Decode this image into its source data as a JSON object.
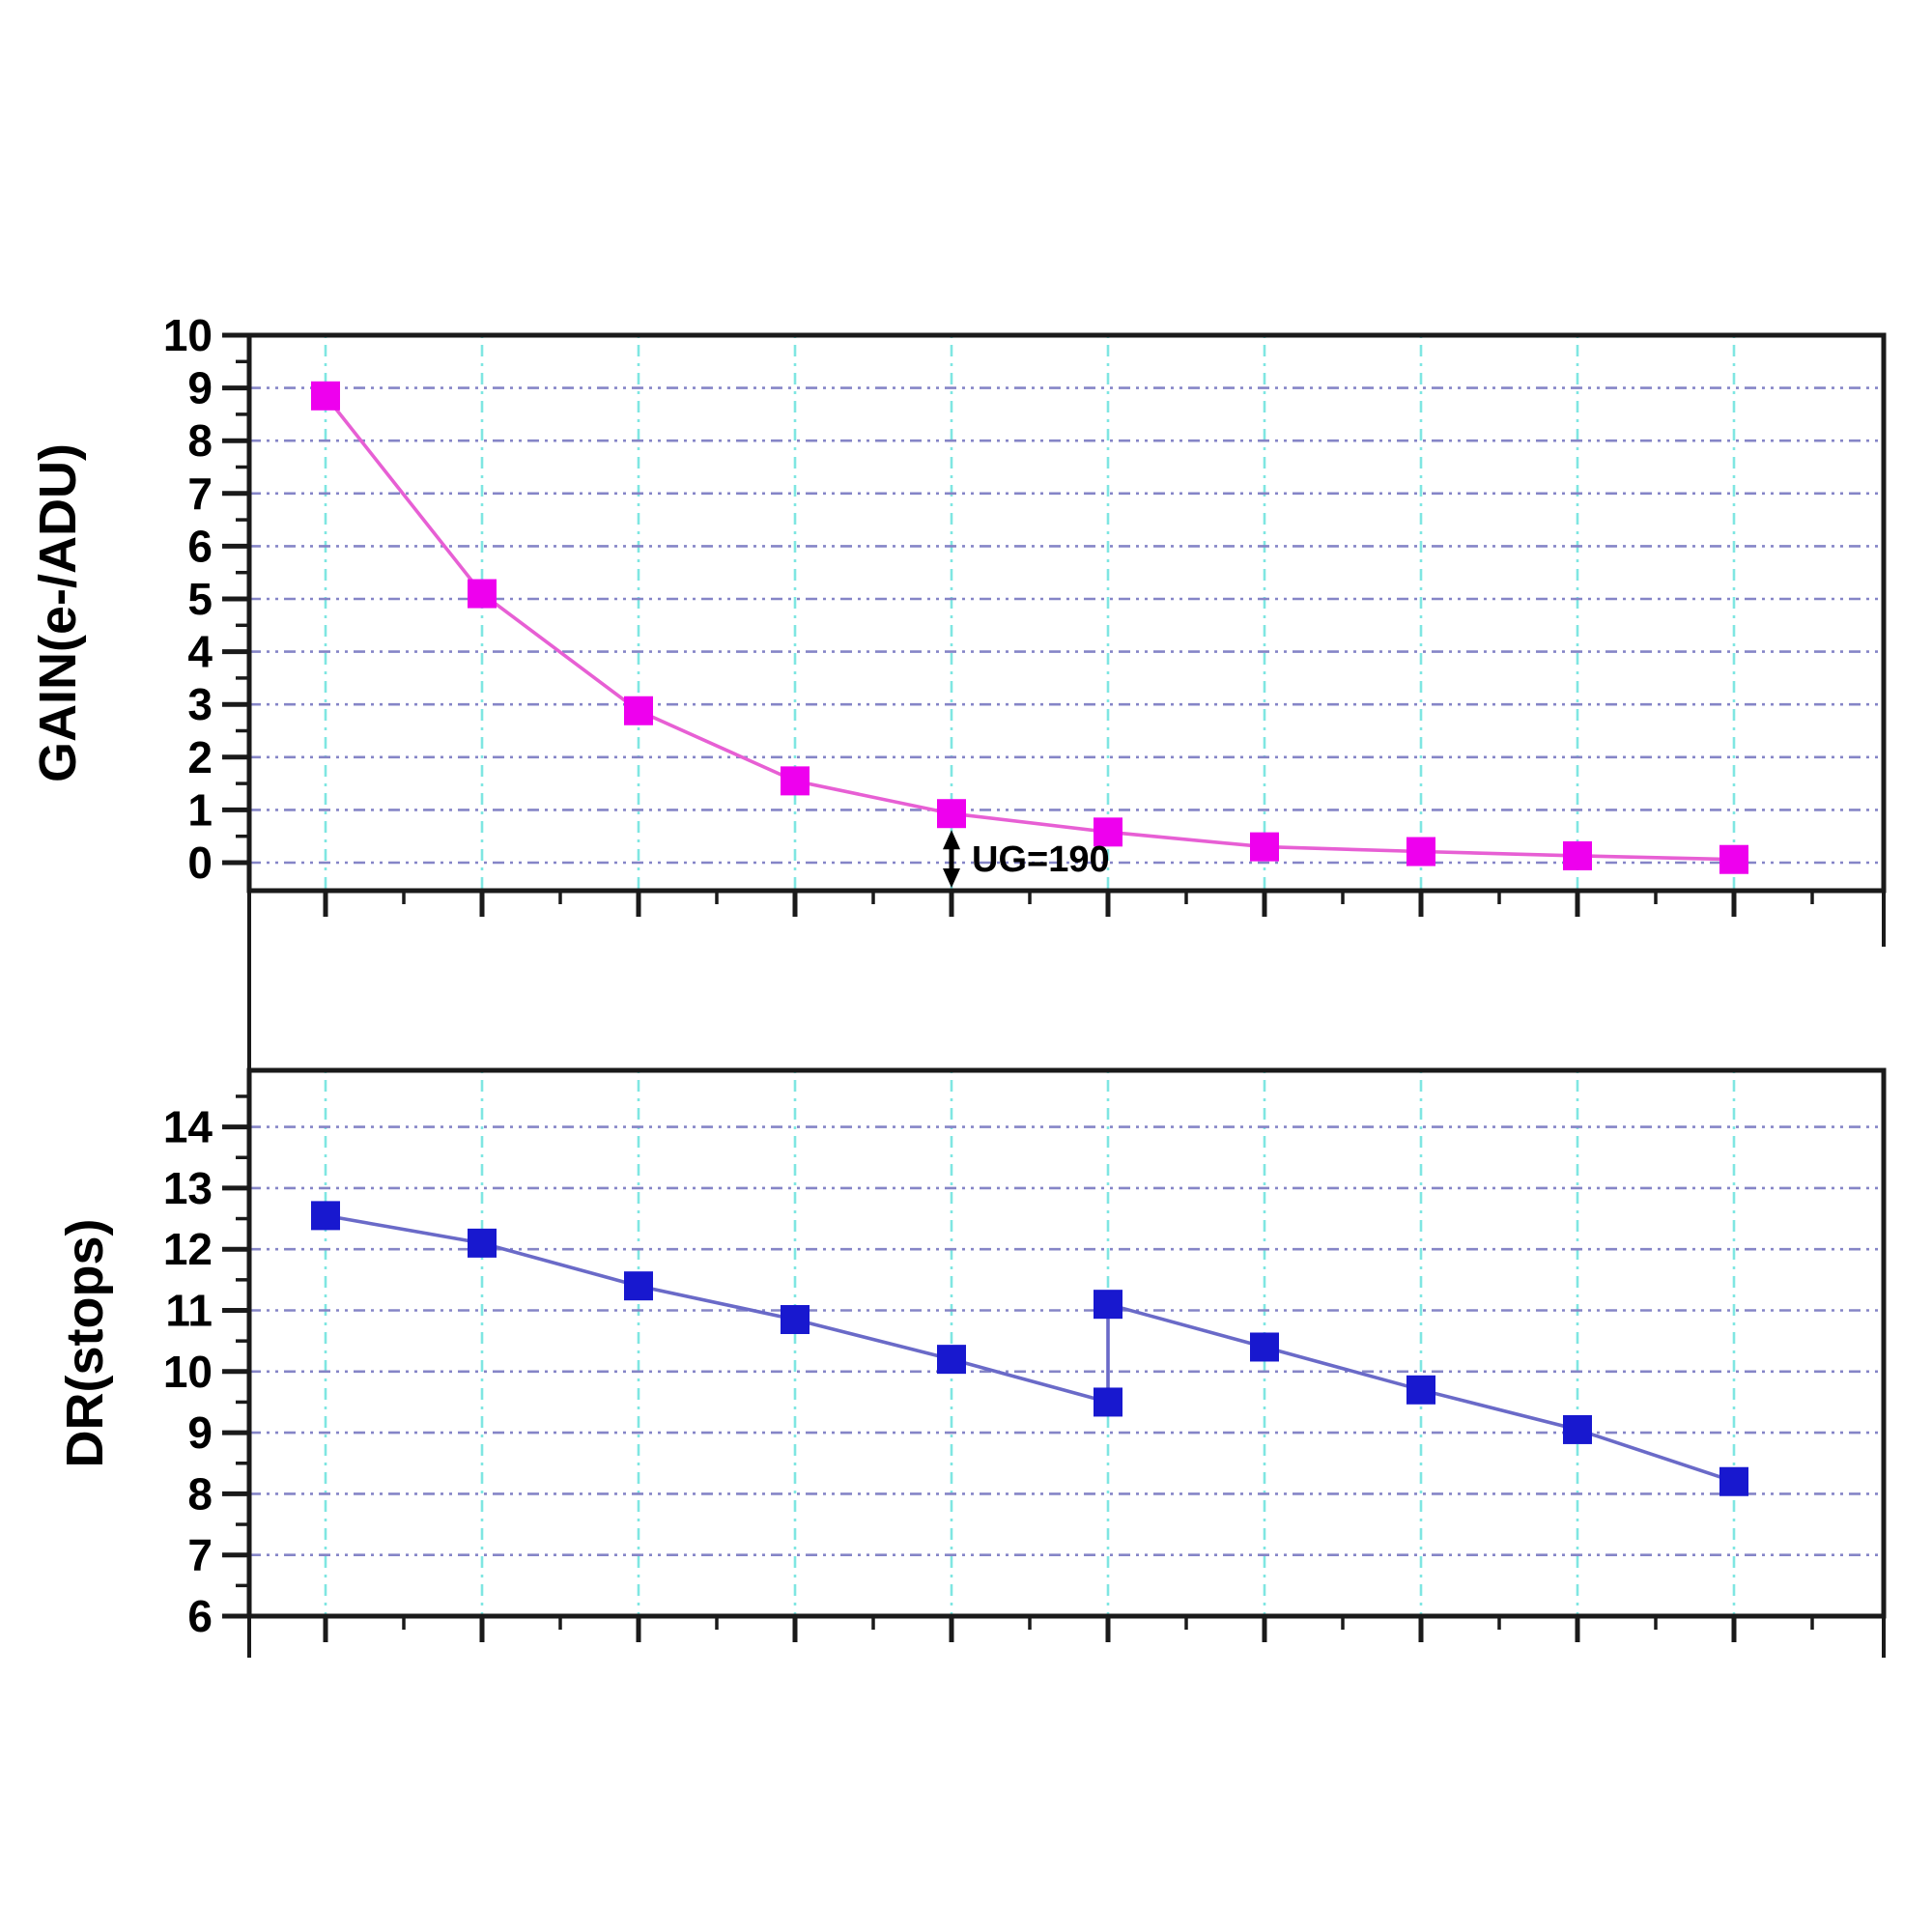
{
  "figure": {
    "background": "#ffffff",
    "axis_color": "#1a1a1a",
    "grid": {
      "horizontal_color": "#8585c7",
      "vertical_color": "#7fe6e2"
    },
    "annotation": {
      "text": "UG=190",
      "at_x": 5,
      "arrow": "vertical-double-headed",
      "color": "#000000"
    },
    "chart_data": [
      {
        "id": "gain",
        "type": "line",
        "title": "",
        "xlabel": "",
        "ylabel": "GAIN(e-/ADU)",
        "x_tick_labels": [],
        "y_ticks": [
          0,
          1,
          2,
          3,
          4,
          5,
          6,
          7,
          8,
          9,
          10
        ],
        "grid_y": [
          0,
          1,
          2,
          3,
          4,
          5,
          6,
          7,
          8,
          9
        ],
        "ylim": [
          -0.5,
          10
        ],
        "xlim_index": [
          1,
          10
        ],
        "points": [
          [
            1,
            8.85
          ],
          [
            2,
            5.1
          ],
          [
            3,
            2.88
          ],
          [
            4,
            1.55
          ],
          [
            5,
            0.93
          ],
          [
            6,
            0.58
          ],
          [
            7,
            0.3
          ],
          [
            8,
            0.21
          ],
          [
            9,
            0.13
          ],
          [
            10,
            0.06
          ]
        ],
        "marker": "square",
        "marker_color": "#ee00ee",
        "line_color": "#e75fd4",
        "grid_on": true,
        "legend": "none"
      },
      {
        "id": "dr",
        "type": "line",
        "title": "",
        "xlabel": "",
        "ylabel": "DR(stops)",
        "x_tick_labels": [],
        "y_ticks": [
          6,
          7,
          8,
          9,
          10,
          11,
          12,
          13,
          14
        ],
        "grid_y": [
          7,
          8,
          9,
          10,
          11,
          12,
          13,
          14
        ],
        "ylim": [
          6,
          14.9
        ],
        "xlim_index": [
          1,
          10
        ],
        "points": [
          [
            1,
            12.55
          ],
          [
            2,
            12.1
          ],
          [
            3,
            11.4
          ],
          [
            4,
            10.85
          ],
          [
            5,
            10.2
          ],
          [
            6,
            9.5
          ],
          [
            6,
            11.1
          ],
          [
            7,
            10.4
          ],
          [
            8,
            9.7
          ],
          [
            9,
            9.05
          ],
          [
            10,
            8.2
          ]
        ],
        "marker": "square",
        "marker_color": "#1818cf",
        "line_color": "#6a6ac8",
        "grid_on": true,
        "legend": "none"
      }
    ]
  }
}
